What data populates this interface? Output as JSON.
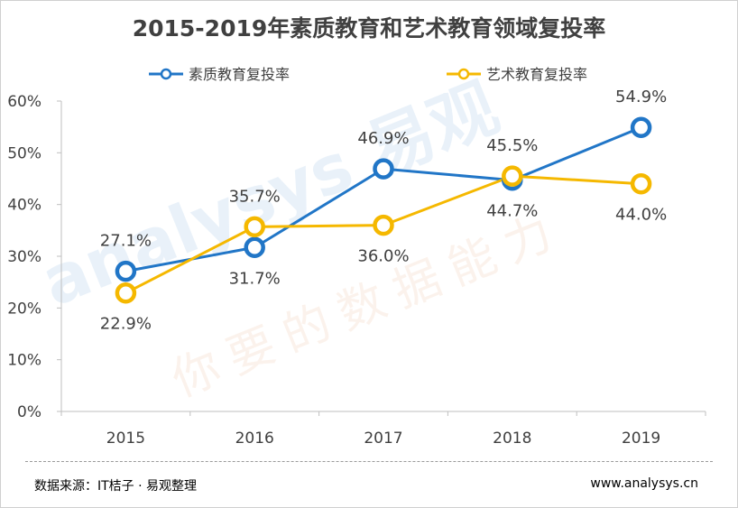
{
  "title": "2015-2019年素质教育和艺术教育领域复投率",
  "footer": {
    "source": "数据来源：IT桔子 · 易观整理",
    "url": "www.analysys.cn"
  },
  "watermark": {
    "logo_text": "analysys 易观",
    "slogan": "你要的数据能力"
  },
  "colors": {
    "series1": "#2176c7",
    "series2": "#f5b800",
    "axis": "#bfbfbf",
    "text": "#404040"
  },
  "chart_data": {
    "type": "line",
    "title": "2015-2019年素质教育和艺术教育领域复投率",
    "categories": [
      "2015",
      "2016",
      "2017",
      "2018",
      "2019"
    ],
    "y_ticks": [
      "0%",
      "10%",
      "20%",
      "30%",
      "40%",
      "50%",
      "60%"
    ],
    "ylim": [
      0,
      60
    ],
    "legend_position": "top",
    "grid": false,
    "series": [
      {
        "name": "素质教育复投率",
        "values": [
          27.1,
          31.7,
          46.9,
          44.7,
          54.9
        ],
        "labels": [
          "27.1%",
          "31.7%",
          "46.9%",
          "44.7%",
          "54.9%"
        ]
      },
      {
        "name": "艺术教育复投率",
        "values": [
          22.9,
          35.7,
          36.0,
          45.5,
          44.0
        ],
        "labels": [
          "22.9%",
          "35.7%",
          "36.0%",
          "45.5%",
          "44.0%"
        ]
      }
    ]
  }
}
